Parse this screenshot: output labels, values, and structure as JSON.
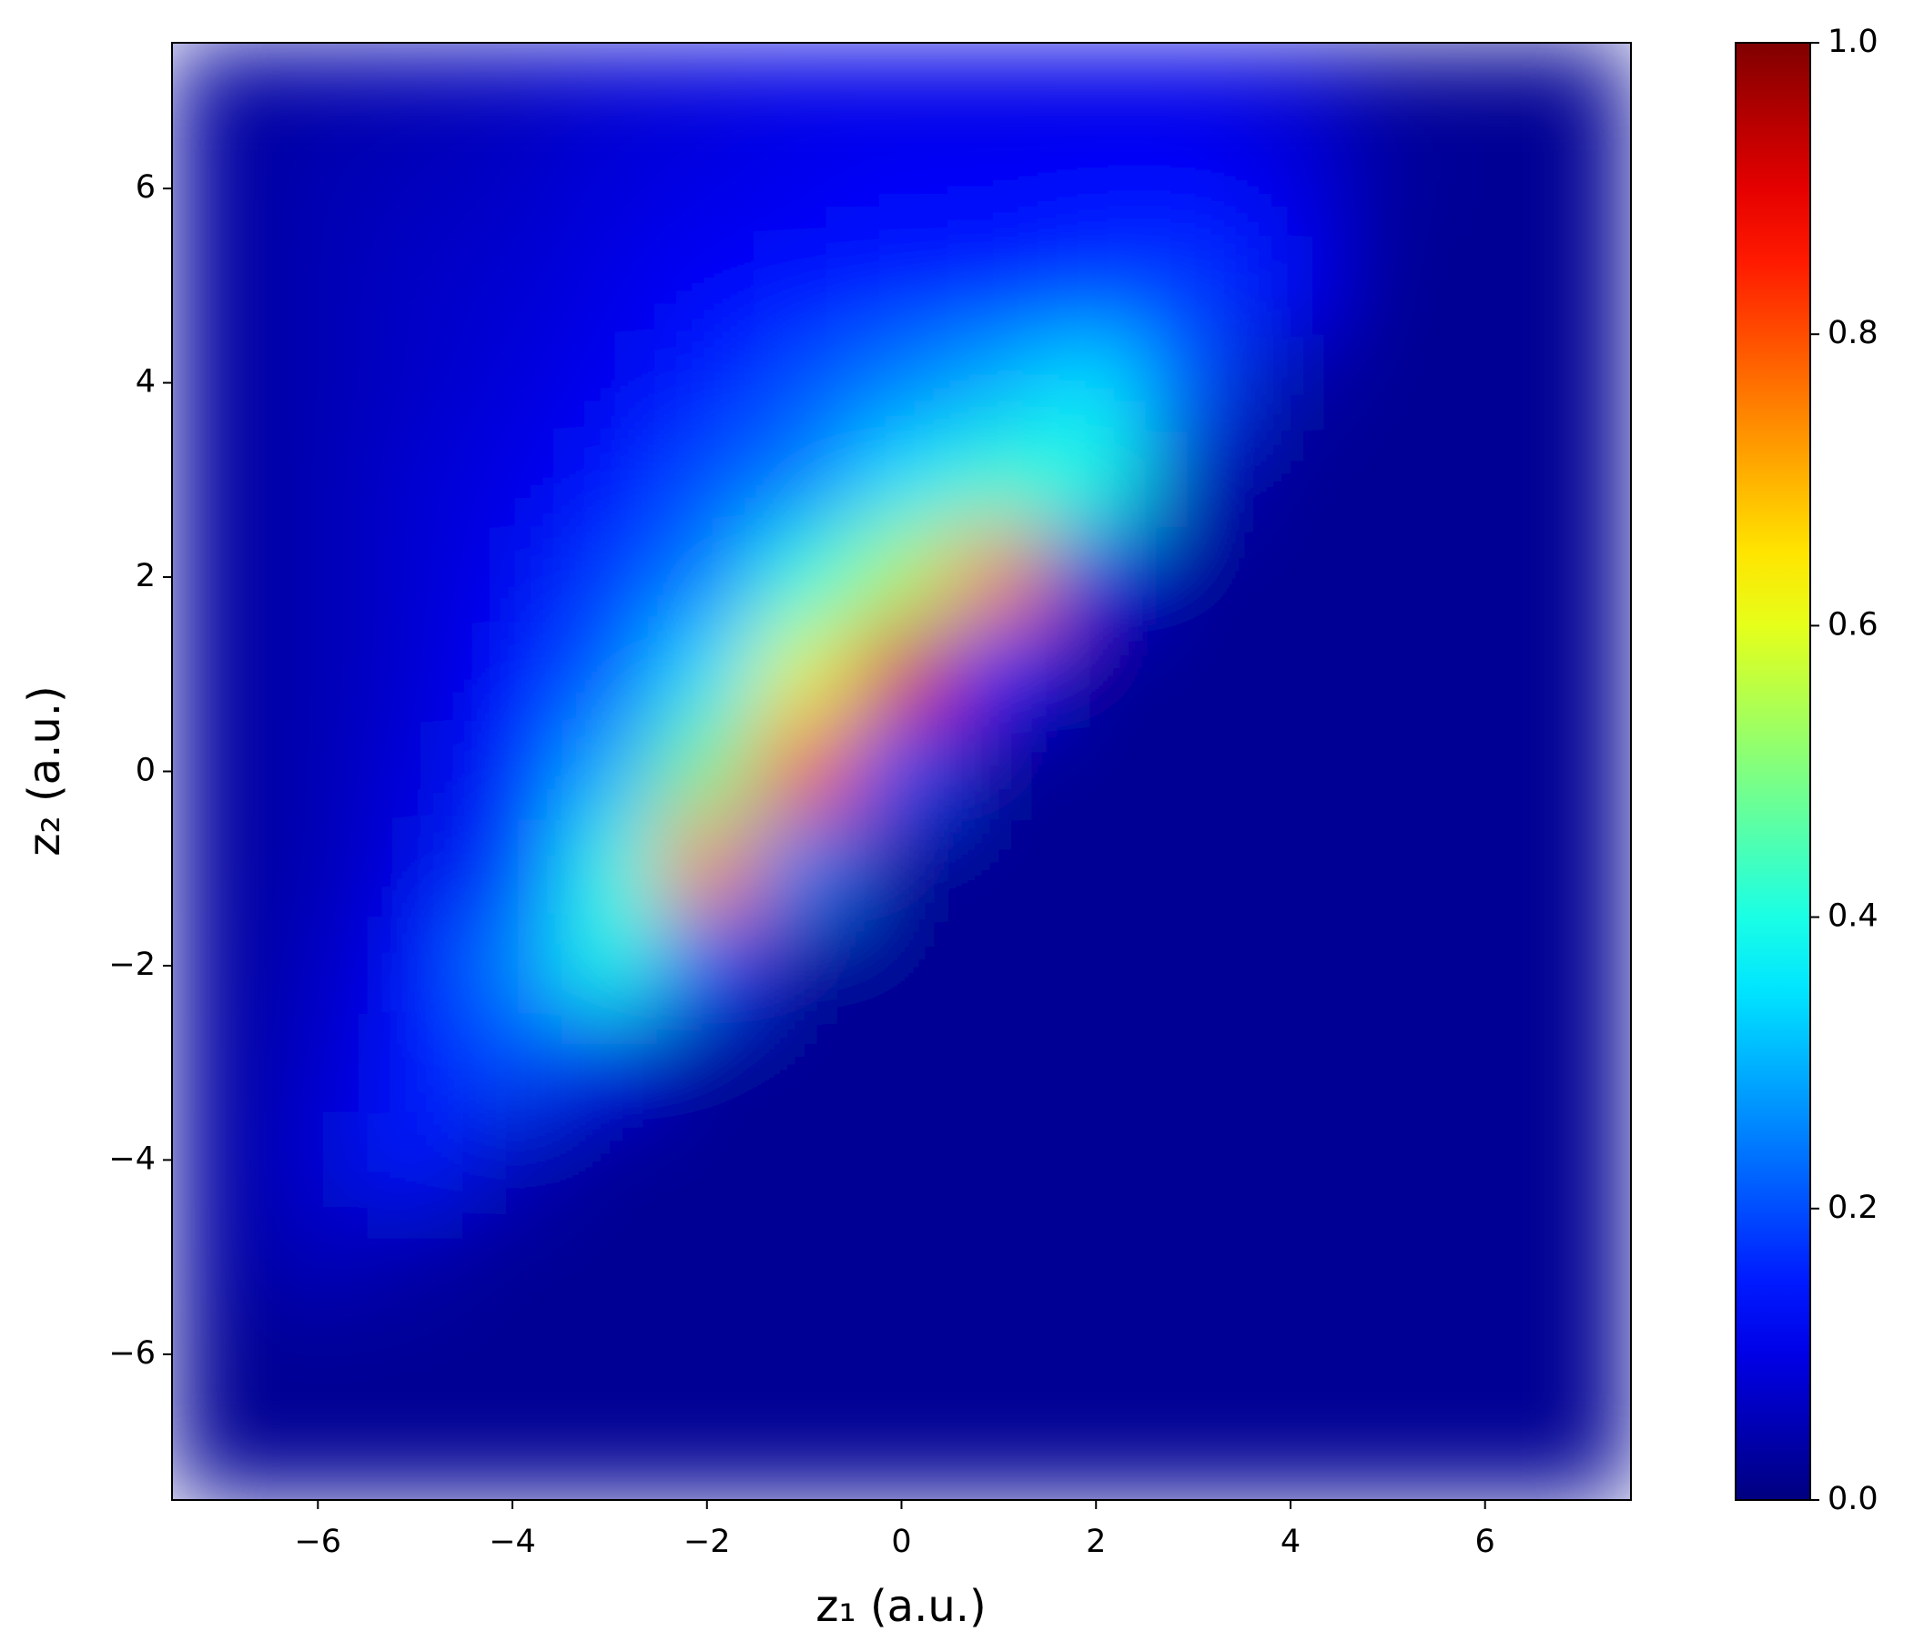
{
  "chart_data": {
    "type": "heatmap",
    "colormap": "jet",
    "xlabel": "z₁ (a.u.)",
    "ylabel": "z₂ (a.u.)",
    "xlim": [
      -7.5,
      7.5
    ],
    "ylim": [
      -7.5,
      7.5
    ],
    "clim": [
      0,
      1
    ],
    "xticks": [
      {
        "value": -6,
        "label": "−6"
      },
      {
        "value": -4,
        "label": "−4"
      },
      {
        "value": -2,
        "label": "−2"
      },
      0,
      2,
      4,
      6
    ],
    "yticks": [
      {
        "value": -6,
        "label": "−6"
      },
      {
        "value": -4,
        "label": "−4"
      },
      {
        "value": -2,
        "label": "−2"
      },
      0,
      2,
      4,
      6
    ],
    "cticks": [
      {
        "value": 0,
        "label": "0.0"
      },
      0.2,
      0.4,
      0.6,
      0.8,
      {
        "value": 1,
        "label": "1.0"
      }
    ],
    "x": [
      -7,
      -6,
      -5,
      -4,
      -3,
      -2,
      -1,
      0,
      1,
      2,
      3,
      4,
      5,
      6,
      7
    ],
    "y": [
      7,
      6,
      5,
      4,
      3,
      2,
      1,
      0,
      -1,
      -2,
      -3,
      -4,
      -5,
      -6,
      -7
    ],
    "values": [
      [
        0.03,
        0.04,
        0.05,
        0.06,
        0.08,
        0.09,
        0.1,
        0.1,
        0.1,
        0.1,
        0.1,
        0.08,
        0.03,
        0.02,
        0.02
      ],
      [
        0.03,
        0.05,
        0.06,
        0.07,
        0.09,
        0.1,
        0.11,
        0.12,
        0.12,
        0.13,
        0.13,
        0.1,
        0.03,
        0.02,
        0.02
      ],
      [
        0.03,
        0.05,
        0.07,
        0.08,
        0.1,
        0.12,
        0.14,
        0.15,
        0.16,
        0.18,
        0.18,
        0.12,
        0.02,
        0.02,
        0.02
      ],
      [
        0.03,
        0.05,
        0.07,
        0.09,
        0.11,
        0.15,
        0.2,
        0.25,
        0.3,
        0.35,
        0.2,
        0.04,
        0.02,
        0.02,
        0.02
      ],
      [
        0.03,
        0.05,
        0.08,
        0.1,
        0.14,
        0.2,
        0.25,
        0.35,
        0.42,
        0.4,
        0.06,
        0.02,
        0.02,
        0.02,
        0.02
      ],
      [
        0.03,
        0.05,
        0.08,
        0.11,
        0.18,
        0.25,
        0.4,
        0.55,
        0.75,
        0.1,
        0.02,
        0.02,
        0.02,
        0.02,
        0.02
      ],
      [
        0.03,
        0.05,
        0.08,
        0.13,
        0.22,
        0.35,
        0.6,
        0.9,
        0.15,
        0.02,
        0.02,
        0.02,
        0.02,
        0.02,
        0.02
      ],
      [
        0.03,
        0.05,
        0.09,
        0.15,
        0.3,
        0.5,
        0.8,
        0.2,
        0.02,
        0.02,
        0.02,
        0.02,
        0.02,
        0.02,
        0.02
      ],
      [
        0.03,
        0.05,
        0.1,
        0.18,
        0.4,
        0.75,
        0.25,
        0.02,
        0.02,
        0.02,
        0.02,
        0.02,
        0.02,
        0.02,
        0.02
      ],
      [
        0.03,
        0.06,
        0.12,
        0.25,
        0.4,
        0.2,
        0.02,
        0.02,
        0.02,
        0.02,
        0.02,
        0.02,
        0.02,
        0.02,
        0.02
      ],
      [
        0.03,
        0.07,
        0.14,
        0.2,
        0.1,
        0.02,
        0.02,
        0.02,
        0.02,
        0.02,
        0.02,
        0.02,
        0.02,
        0.02,
        0.02
      ],
      [
        0.03,
        0.08,
        0.15,
        0.06,
        0.02,
        0.02,
        0.02,
        0.02,
        0.02,
        0.02,
        0.02,
        0.02,
        0.02,
        0.02,
        0.02
      ],
      [
        0.03,
        0.06,
        0.04,
        0.02,
        0.02,
        0.02,
        0.02,
        0.02,
        0.02,
        0.02,
        0.02,
        0.02,
        0.02,
        0.02,
        0.02
      ],
      [
        0.02,
        0.02,
        0.02,
        0.02,
        0.02,
        0.02,
        0.02,
        0.02,
        0.02,
        0.02,
        0.02,
        0.02,
        0.02,
        0.02,
        0.02
      ],
      [
        0.02,
        0.02,
        0.02,
        0.02,
        0.02,
        0.02,
        0.02,
        0.02,
        0.02,
        0.02,
        0.02,
        0.02,
        0.02,
        0.02,
        0.02
      ]
    ]
  }
}
